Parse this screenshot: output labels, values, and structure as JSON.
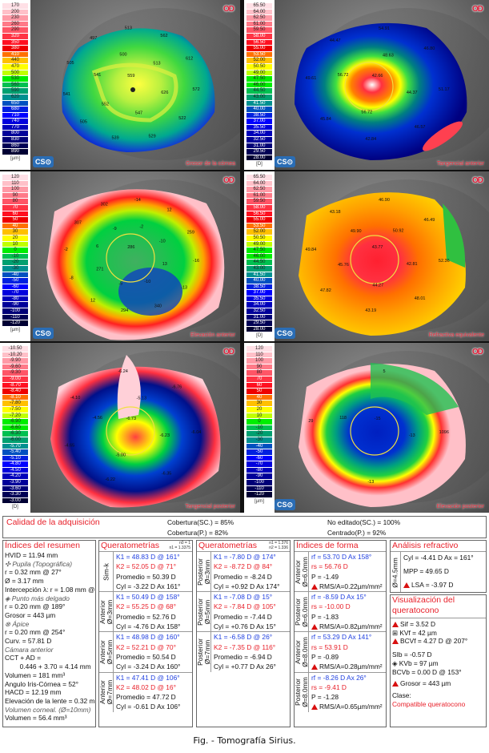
{
  "maps": {
    "eye_label": "OD",
    "panels": [
      {
        "id": "thickness",
        "title": "Grosor de la córnea",
        "values": [
          "559",
          "626",
          "547",
          "552",
          "541",
          "500",
          "513",
          "572",
          "522",
          "529",
          "539",
          "505",
          "541",
          "505",
          "497",
          "513",
          "562",
          "612"
        ]
      },
      {
        "id": "tangential-anterior",
        "title": "Tangencial anterior",
        "values": [
          "42.66",
          "44.37",
          "56.72",
          "56.72",
          "48.63",
          "51.17",
          "46.57",
          "42.84",
          "45.84",
          "49.61",
          "44.47",
          "54.91",
          "46.80"
        ]
      },
      {
        "id": "elevation-anterior",
        "title": "Elevación anterior",
        "values": [
          "286",
          "13",
          "-10",
          "-5",
          "271",
          "6",
          "-9",
          "-2",
          "-10",
          "-16",
          "-13",
          "340",
          "294",
          "12",
          "-8",
          "-2",
          "307",
          "302",
          "-14",
          "12",
          "259"
        ]
      },
      {
        "id": "refractive-equivalent",
        "title": "Refractiva equivalente",
        "values": [
          "43.77",
          "42.81",
          "44.27",
          "45.76",
          "49.90",
          "50.92",
          "52.36",
          "48.01",
          "43.19",
          "47.82",
          "49.84",
          "43.18",
          "46.90",
          "46.49"
        ]
      },
      {
        "id": "tangential-posterior",
        "title": "Tangencial posterior",
        "values": [
          "-6.73",
          "-6.23",
          "-5.00",
          "-4.56",
          "-5.13",
          "-6.04",
          "-6.35",
          "-6.22",
          "-4.65",
          "-4.10",
          "-6.24",
          "-6.76"
        ]
      },
      {
        "id": "elevation-posterior",
        "title": "Elevación posterior",
        "values": [
          "-15",
          "-13",
          "118",
          "1096",
          "-13",
          "29",
          "5"
        ]
      }
    ],
    "scales": {
      "thickness": {
        "unit": "[µm]",
        "labels": [
          "170",
          "200",
          "230",
          "260",
          "290",
          "320",
          "350",
          "380",
          "410",
          "440",
          "470",
          "500",
          "530",
          "560",
          "590",
          "620",
          "650",
          "680",
          "710",
          "740",
          "770",
          "800",
          "830",
          "860",
          "890"
        ]
      },
      "curvature_anterior": {
        "unit": "[D]",
        "labels": [
          "65.50",
          "64.00",
          "62.50",
          "61.00",
          "59.50",
          "58.00",
          "56.50",
          "55.00",
          "53.50",
          "52.00",
          "50.50",
          "49.00",
          "47.50",
          "46.00",
          "44.50",
          "43.00",
          "41.50",
          "40.00",
          "38.50",
          "37.00",
          "35.50",
          "34.00",
          "32.50",
          "31.00",
          "29.50",
          "28.00"
        ]
      },
      "elevation_anterior": {
        "unit": "[µm]",
        "labels": [
          "120",
          "110",
          "100",
          "90",
          "80",
          "70",
          "60",
          "50",
          "40",
          "30",
          "20",
          "10",
          "0",
          "-10",
          "-20",
          "-30",
          "-40",
          "-50",
          "-60",
          "-70",
          "-80",
          "-90",
          "-100",
          "-110",
          "-120"
        ]
      },
      "curvature_posterior": {
        "unit": "[D]",
        "labels": [
          "-10.50",
          "-10.20",
          "-9.90",
          "-9.60",
          "-9.30",
          "-9.00",
          "-8.70",
          "-8.40",
          "-8.10",
          "-7.80",
          "-7.50",
          "-7.20",
          "-6.90",
          "-6.60",
          "-6.30",
          "-6.00",
          "-5.70",
          "-5.40",
          "-5.10",
          "-4.80",
          "-4.50",
          "-4.20",
          "-3.90",
          "-3.60",
          "-3.30",
          "-3.00"
        ]
      },
      "elevation_posterior": {
        "unit": "[µm]",
        "labels": [
          "120",
          "110",
          "100",
          "90",
          "80",
          "70",
          "60",
          "50",
          "40",
          "30",
          "20",
          "10",
          "0",
          "-10",
          "-20",
          "-30",
          "-40",
          "-50",
          "-60",
          "-70",
          "-80",
          "-90",
          "-100",
          "-110",
          "-120"
        ]
      }
    },
    "scale_colors": {
      "thickness": [
        "#ffe0e6",
        "#ffc0c8",
        "#ff9aa6",
        "#ff7a88",
        "#ff5566",
        "#ff3344",
        "#ff1020",
        "#ee0000",
        "#ff7000",
        "#ffc000",
        "#ffff00",
        "#c0ff00",
        "#00ee00",
        "#00c050",
        "#00a070",
        "#009090",
        "#0050c0",
        "#0020e0",
        "#0000ff",
        "#0000dd",
        "#0000bb",
        "#000099",
        "#000077",
        "#000055",
        "#000033"
      ],
      "logo_text": "CS⊙"
    }
  },
  "quality": {
    "title": "Calidad de la adquisición",
    "cobertura_sc": "Cobertura(SC.) = 85%",
    "cobertura_p": "Cobertura(P.) = 82%",
    "no_editado": "No editado(SC.) = 100%",
    "centrado": "Centrado(P.) = 92%"
  },
  "summary": {
    "title": "Índices del resumen",
    "lines": [
      {
        "t": "HVID = 11.94 mm",
        "s": "n"
      },
      {
        "t": "✣ Pupila (Topográfica)",
        "s": "i"
      },
      {
        "t": "r = 0.32 mm @ 27°",
        "s": "n"
      },
      {
        "t": "Ø = 3.17 mm",
        "s": "n"
      },
      {
        "t": "Intercepción λ: r = 1.08 mm @ 27°",
        "s": "n"
      },
      {
        "t": "◈ Punto más delgado",
        "s": "i"
      },
      {
        "t": "r = 0.20 mm @ 189°",
        "s": "n"
      },
      {
        "t": "Grosor = 443 µm",
        "s": "n"
      },
      {
        "t": "⊗ Ápice",
        "s": "i"
      },
      {
        "t": "r = 0.20 mm @ 254°",
        "s": "n"
      },
      {
        "t": "Curv. = 57.81 D",
        "s": "n"
      },
      {
        "t": "Cámara anterior",
        "s": "i"
      },
      {
        "t": "CCT + AD =",
        "s": "n"
      },
      {
        "t": "        0.446 + 3.70 = 4.14 mm",
        "s": "n"
      },
      {
        "t": "Volumen = 181 mm³",
        "s": "n"
      },
      {
        "t": "Angulo Iris-Córnea = 52°",
        "s": "n"
      },
      {
        "t": "HACD = 12.19 mm",
        "s": "n"
      },
      {
        "t": "Elevación de la lente = 0.32 mm",
        "s": "n"
      },
      {
        "t": "Volumen corneal. (Ø=10mm)",
        "s": "i"
      },
      {
        "t": "Volumen = 56.4 mm³",
        "s": "n"
      }
    ]
  },
  "kerato_anterior": {
    "title": "Queratometrías",
    "note1": "n0 = 1",
    "note2": "n1 = 1.3375",
    "rows": [
      {
        "label": "Sim-k",
        "k1": "K1 = 48.83 D  @ 161°",
        "k2": "K2 = 52.05 D  @ 71°",
        "avg": "Promedio = 50.39 D",
        "cyl": "Cyl = -3.22 D Ax 161°"
      },
      {
        "label": "Anterior Ø=3mm",
        "k1": "K1 = 50.49 D  @ 158°",
        "k2": "K2 = 55.25 D  @ 68°",
        "avg": "Promedio = 52.76 D",
        "cyl": "Cyl = -4.76 D Ax 158°"
      },
      {
        "label": "Anterior Ø=5mm",
        "k1": "K1 = 48.98 D  @ 160°",
        "k2": "K2 = 52.21 D  @ 70°",
        "avg": "Promedio = 50.54 D",
        "cyl": "Cyl = -3.24 D Ax 160°"
      },
      {
        "label": "Anterior Ø=7mm",
        "k1": "K1 = 47.41 D  @ 106°",
        "k2": "K2 = 48.02 D  @ 16°",
        "avg": "Promedio = 47.72 D",
        "cyl": "Cyl = -0.61 D Ax 106°"
      }
    ]
  },
  "kerato_posterior": {
    "title": "Queratometrías",
    "note1": "n1 = 1.376",
    "note2": "n2 = 1.336",
    "rows": [
      {
        "label": "Posterior Ø=3mm",
        "k1": "K1 = -7.80 D  @ 174°",
        "k2": "K2 = -8.72 D  @ 84°",
        "avg": "Promedio = -8.24 D",
        "cyl": "Cyl = +0.92 D Ax 174°"
      },
      {
        "label": "Posterior Ø=5mm",
        "k1": "K1 = -7.08 D  @ 15°",
        "k2": "K2 = -7.84 D  @ 105°",
        "avg": "Promedio = -7.44 D",
        "cyl": "Cyl = +0.76 D Ax 15°"
      },
      {
        "label": "Posterior Ø=7mm",
        "k1": "K1 = -6.58 D  @ 26°",
        "k2": "K2 = -7.35 D  @ 116°",
        "avg": "Promedio = -6.94 D",
        "cyl": "Cyl = +0.77 D Ax 26°"
      }
    ]
  },
  "shape": {
    "title": "Índices de forma",
    "rows": [
      {
        "label": "Anterior Ø=6.0mm",
        "rf": "rf = 53.70 D Ax 158°",
        "rs": "rs = 56.76 D",
        "p": "P = -1.49",
        "rms": "RMS/A=0.22µm/mm²"
      },
      {
        "label": "Posterior Ø=6.0mm",
        "rf": "rf = -8.59 D Ax 15°",
        "rs": "rs = -10.00 D",
        "p": "P = -1.83",
        "rms": "RMS/A=0.82µm/mm²"
      },
      {
        "label": "Anterior Ø=8.0mm",
        "rf": "rf = 53.29 D Ax 141°",
        "rs": "rs = 53.91 D",
        "p": "P = -0.89",
        "rms": "RMS/A=0.28µm/mm²"
      },
      {
        "label": "Posterior Ø=8.0mm",
        "rf": "rf = -8.26 D Ax 26°",
        "rs": "rs = -9.41 D",
        "p": "P = -1.28",
        "rms": "RMS/A=0.65µm/mm²"
      }
    ]
  },
  "refractive": {
    "title": "Análisis refractivo",
    "label": "Ø=4.5mm",
    "cyl": "Cyl = -4.41 D Ax = 161°",
    "mpp": "MPP = 49.65 D",
    "lsa": "LSA = -3.97 D"
  },
  "keratoconus": {
    "title": "Visualización del queratocono",
    "sif": "Sif = 3.52 D",
    "kvf": "⊞ KVf = 42 µm",
    "bcvf": "BCVf = 4.27 D @ 207°",
    "sib": "SIb = -0.57 D",
    "kvb": "◈ KVb = 97 µm",
    "bcvb": "BCVb = 0.00 D @ 153°",
    "grosor": "Grosor = 443 µm",
    "class_label": "Clase:",
    "class_value": "Compatible queratocono"
  },
  "caption": "Fig. - Tomografía Sirius."
}
